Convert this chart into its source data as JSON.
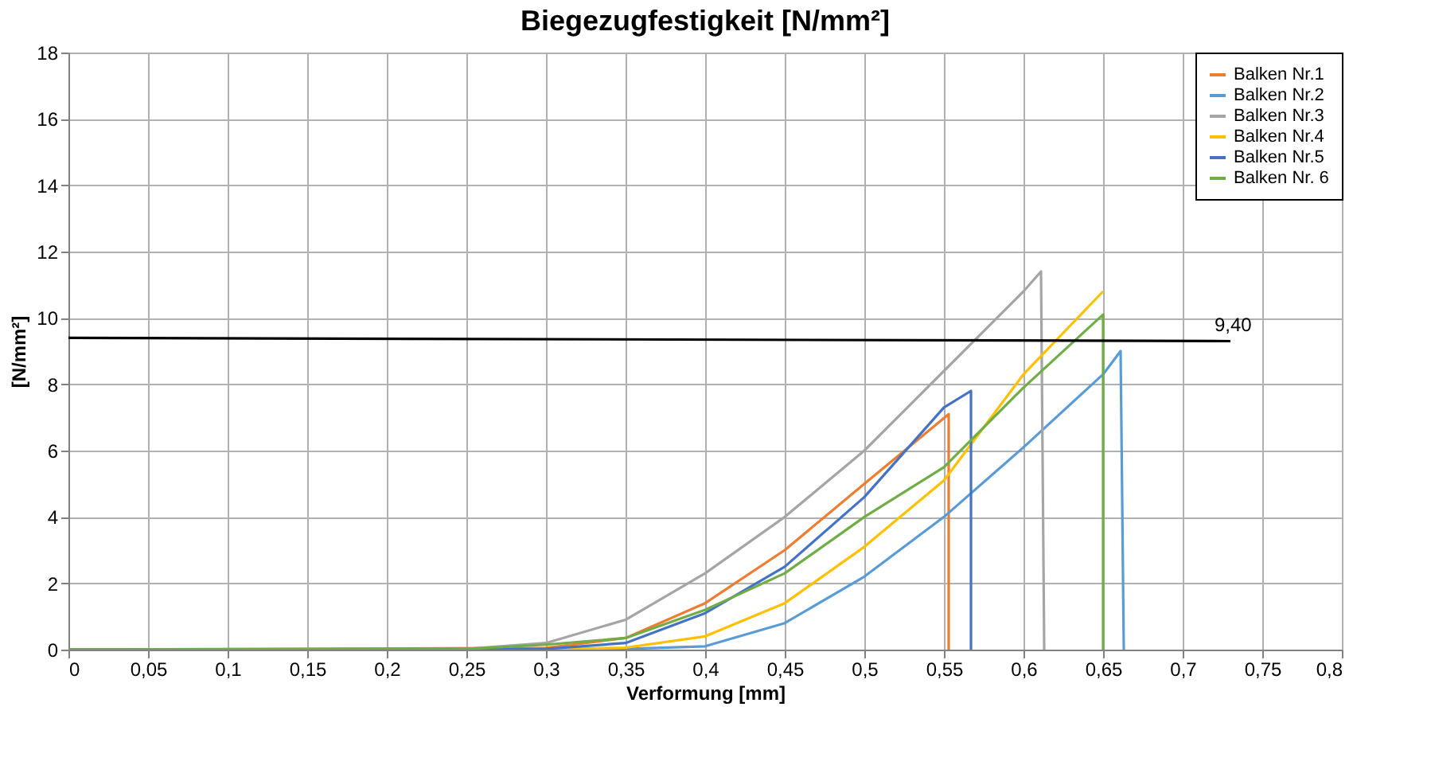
{
  "chart_data": {
    "type": "line",
    "title": "Biegezugfestigkeit [N/mm²]",
    "xlabel": "Verformung [mm]",
    "ylabel": "[N/mm²]",
    "xlim": [
      0,
      0.8
    ],
    "xticks": [
      0,
      {
        "value": 0.05,
        "label": "0,05"
      },
      {
        "value": 0.1,
        "label": "0,1"
      },
      {
        "value": 0.15,
        "label": "0,15"
      },
      {
        "value": 0.2,
        "label": "0,2"
      },
      {
        "value": 0.25,
        "label": "0,25"
      },
      {
        "value": 0.3,
        "label": "0,3"
      },
      {
        "value": 0.35,
        "label": "0,35"
      },
      {
        "value": 0.4,
        "label": "0,4"
      },
      {
        "value": 0.45,
        "label": "0,45"
      },
      {
        "value": 0.5,
        "label": "0,5"
      },
      {
        "value": 0.55,
        "label": "0,55"
      },
      {
        "value": 0.6,
        "label": "0,6"
      },
      {
        "value": 0.65,
        "label": "0,65"
      },
      {
        "value": 0.7,
        "label": "0,7"
      },
      {
        "value": 0.75,
        "label": "0,75"
      },
      {
        "value": 0.8,
        "label": "0,8"
      }
    ],
    "ylim": [
      0,
      18
    ],
    "yticks": [
      0,
      2,
      4,
      6,
      8,
      10,
      12,
      14,
      16,
      18
    ],
    "grid": true,
    "legend": "top right",
    "marker": "none",
    "line_style": "solid",
    "series": [
      {
        "name": "Balken Nr.1",
        "color": "#ed7d31",
        "x": [
          0,
          0.3,
          0.35,
          0.4,
          0.45,
          0.5,
          0.553,
          0.553
        ],
        "values": [
          0,
          0.05,
          0.35,
          1.4,
          3.0,
          5.0,
          7.1,
          0
        ]
      },
      {
        "name": "Balken Nr.2",
        "color": "#5b9bd5",
        "x": [
          0,
          0.35,
          0.4,
          0.45,
          0.5,
          0.55,
          0.6,
          0.65,
          0.661,
          0.663
        ],
        "values": [
          0,
          0.02,
          0.1,
          0.8,
          2.2,
          4.0,
          6.1,
          8.3,
          9.0,
          0
        ]
      },
      {
        "name": "Balken Nr.3",
        "color": "#a5a5a5",
        "x": [
          0,
          0.25,
          0.3,
          0.35,
          0.4,
          0.45,
          0.5,
          0.55,
          0.6,
          0.611,
          0.613
        ],
        "values": [
          0,
          0.02,
          0.2,
          0.9,
          2.3,
          4.0,
          6.0,
          8.4,
          10.8,
          11.4,
          0
        ]
      },
      {
        "name": "Balken Nr.4",
        "color": "#ffc000",
        "x": [
          0,
          0.3,
          0.35,
          0.4,
          0.45,
          0.5,
          0.55,
          0.6,
          0.65
        ],
        "values": [
          0,
          0,
          0.06,
          0.4,
          1.4,
          3.1,
          5.1,
          8.3,
          10.8
        ]
      },
      {
        "name": "Balken Nr.5",
        "color": "#4472c4",
        "x": [
          0,
          0.3,
          0.35,
          0.4,
          0.45,
          0.5,
          0.55,
          0.567,
          0.567
        ],
        "values": [
          0,
          0.02,
          0.2,
          1.1,
          2.5,
          4.6,
          7.3,
          7.8,
          0
        ]
      },
      {
        "name": "Balken Nr. 6",
        "color": "#70ad47",
        "x": [
          0,
          0.25,
          0.3,
          0.35,
          0.4,
          0.45,
          0.5,
          0.55,
          0.6,
          0.65,
          0.65
        ],
        "values": [
          0,
          0.02,
          0.15,
          0.35,
          1.2,
          2.3,
          4.0,
          5.5,
          7.9,
          10.1,
          0
        ]
      },
      {
        "color": "#000000",
        "x": [
          0,
          0.73
        ],
        "values": [
          9.4,
          9.3
        ]
      }
    ],
    "annotations": [
      {
        "text": "9,40",
        "x": 0.72,
        "y": 9.4
      }
    ]
  }
}
